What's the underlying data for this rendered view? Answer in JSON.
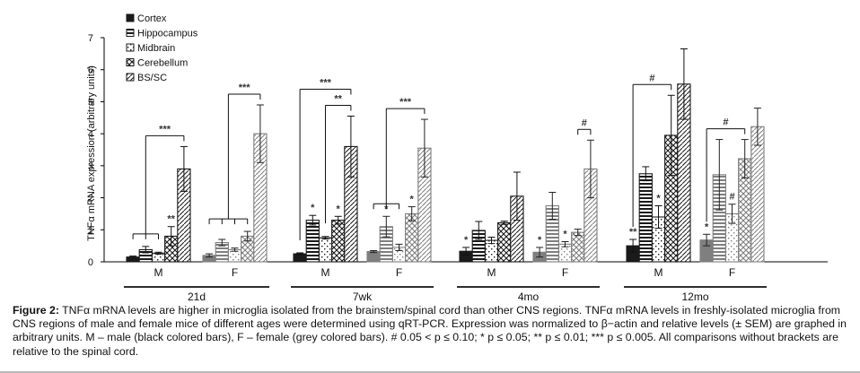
{
  "chart_data": {
    "type": "bar",
    "title": "",
    "ylabel": "TNFα mRNA expression (arbitrary units)",
    "xlabel": "",
    "ylim": [
      0,
      7
    ],
    "yticks": [
      0,
      1,
      2,
      3,
      4,
      5,
      6,
      7
    ],
    "grid": false,
    "legend_position": "top-left",
    "series_names": [
      "Cortex",
      "Hippocampus",
      "Midbrain",
      "Cerebellum",
      "BS/SC"
    ],
    "age_groups": [
      "21d",
      "7wk",
      "4mo",
      "12mo"
    ],
    "sexes": [
      "M",
      "F"
    ],
    "sex_colors": {
      "M": "#1a1a1a",
      "F": "#7f7f7f"
    },
    "groups": [
      {
        "age": "21d",
        "sex": "M",
        "values": [
          0.15,
          0.38,
          0.27,
          0.8,
          2.9
        ],
        "errors": [
          0.03,
          0.1,
          0.03,
          0.3,
          0.7
        ],
        "marks": [
          "",
          "",
          "",
          "**",
          ""
        ]
      },
      {
        "age": "21d",
        "sex": "F",
        "values": [
          0.2,
          0.6,
          0.38,
          0.8,
          4.0
        ],
        "errors": [
          0.05,
          0.1,
          0.05,
          0.15,
          0.9
        ],
        "marks": [
          "",
          "",
          "",
          "",
          ""
        ]
      },
      {
        "age": "7wk",
        "sex": "M",
        "values": [
          0.25,
          1.3,
          0.75,
          1.3,
          3.6
        ],
        "errors": [
          0.03,
          0.15,
          0.04,
          0.12,
          0.95
        ],
        "marks": [
          "",
          "*",
          "",
          "*",
          ""
        ]
      },
      {
        "age": "7wk",
        "sex": "F",
        "values": [
          0.32,
          1.1,
          0.45,
          1.5,
          3.55
        ],
        "errors": [
          0.03,
          0.32,
          0.1,
          0.22,
          0.9
        ],
        "marks": [
          "",
          "*",
          "",
          "*",
          ""
        ]
      },
      {
        "age": "4mo",
        "sex": "M",
        "values": [
          0.33,
          0.98,
          0.67,
          1.22,
          2.05
        ],
        "errors": [
          0.12,
          0.28,
          0.1,
          0.05,
          0.75
        ],
        "marks": [
          "*",
          "",
          "",
          "",
          ""
        ]
      },
      {
        "age": "4mo",
        "sex": "F",
        "values": [
          0.3,
          1.75,
          0.55,
          0.92,
          2.9
        ],
        "errors": [
          0.15,
          0.42,
          0.08,
          0.1,
          0.9
        ],
        "marks": [
          "*",
          "",
          "*",
          "",
          ""
        ]
      },
      {
        "age": "12mo",
        "sex": "M",
        "values": [
          0.5,
          2.75,
          1.4,
          3.95,
          5.55
        ],
        "errors": [
          0.2,
          0.22,
          0.35,
          1.25,
          1.1
        ],
        "marks": [
          "**",
          "",
          "*",
          "",
          ""
        ]
      },
      {
        "age": "12mo",
        "sex": "F",
        "values": [
          0.68,
          2.72,
          1.5,
          3.22,
          4.22
        ],
        "errors": [
          0.18,
          1.1,
          0.3,
          0.6,
          0.58
        ],
        "marks": [
          "*",
          "",
          "#",
          "",
          ""
        ]
      }
    ],
    "brackets": [
      {
        "group": 0,
        "type": "multi",
        "from": 0,
        "to": 2,
        "target": 4,
        "label": "***"
      },
      {
        "group": 1,
        "type": "multi",
        "from": 0,
        "to": 3,
        "target": 4,
        "label": "***"
      },
      {
        "group": 2,
        "type": "single",
        "from": 0,
        "target": 4,
        "label": "***"
      },
      {
        "group": 2,
        "type": "single",
        "from": 2,
        "target": 4,
        "label": "**"
      },
      {
        "group": 3,
        "type": "multi",
        "from": 0,
        "to": 2,
        "target": 4,
        "label": "***"
      },
      {
        "group": 5,
        "type": "single",
        "from": 3,
        "target": 4,
        "label": "#"
      },
      {
        "group": 6,
        "type": "single",
        "from": 0,
        "target": 3,
        "label": "#"
      },
      {
        "group": 7,
        "type": "single",
        "from": 0,
        "target": 3,
        "label": "#"
      }
    ]
  },
  "caption": {
    "label": "Figure 2:",
    "text": " TNFα mRNA levels are higher in microglia isolated from the brainstem/spinal cord than other CNS regions. TNFα mRNA levels in freshly-isolated microglia from CNS regions of male and female mice of different ages were determined using qRT-PCR.  Expression was normalized to β−actin and relative levels (± SEM) are graphed in arbitrary units.  M – male (black colored bars), F – female (grey colored bars).   # 0.05 < p ≤ 0.10; * p ≤ 0.05; ** p ≤ 0.01; *** p ≤ 0.005.   All comparisons without brackets are relative to the spinal cord."
  }
}
